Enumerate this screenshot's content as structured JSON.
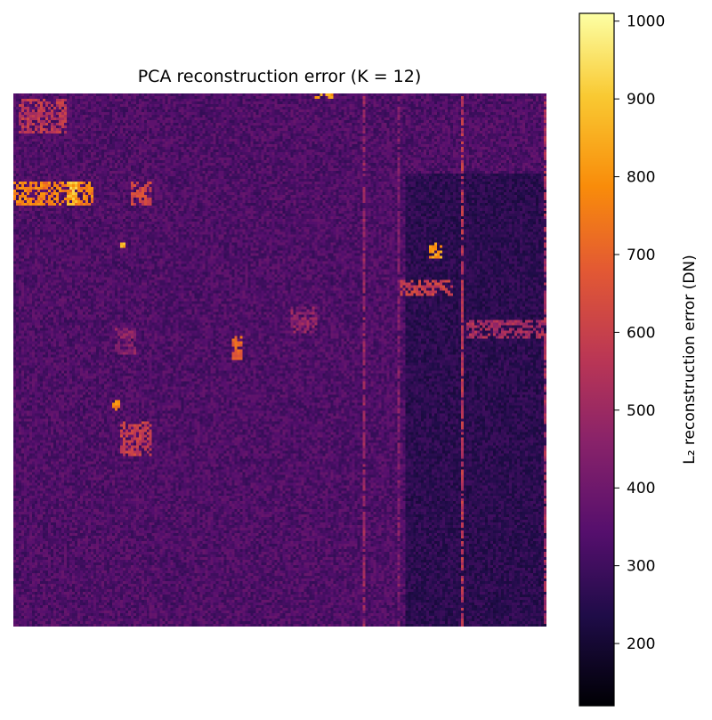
{
  "chart_data": {
    "type": "heatmap",
    "title": "PCA reconstruction error (K = 12)",
    "colormap": "inferno",
    "colorbar": {
      "label": "L₂ reconstruction error (DN)",
      "range": [
        120,
        1010
      ],
      "ticks": [
        200,
        300,
        400,
        500,
        600,
        700,
        800,
        900,
        1000
      ],
      "tick_labels": [
        "200",
        "300",
        "400",
        "500",
        "600",
        "700",
        "800",
        "900",
        "1000"
      ]
    },
    "axes_visible": false,
    "image": {
      "rows": 200,
      "cols": 200,
      "background_level": 330,
      "noise_amplitude": 55,
      "vertical_stripes": [
        {
          "col": 131,
          "level": 480
        },
        {
          "col": 144,
          "level": 430
        },
        {
          "col": 168,
          "level": 560
        },
        {
          "col": 199,
          "level": 520
        }
      ],
      "dark_regions": [
        {
          "col": [
            147,
            200
          ],
          "row": [
            30,
            200
          ],
          "level": 260
        }
      ],
      "bright_features": [
        {
          "col": [
            2,
            20
          ],
          "row": [
            2,
            15
          ],
          "level": 560
        },
        {
          "col": [
            0,
            30
          ],
          "row": [
            33,
            42
          ],
          "level": 760
        },
        {
          "col": [
            20,
            24
          ],
          "row": [
            33,
            42
          ],
          "level": 880
        },
        {
          "col": [
            44,
            52
          ],
          "row": [
            33,
            42
          ],
          "level": 620
        },
        {
          "col": [
            113,
            120
          ],
          "row": [
            0,
            2
          ],
          "level": 840
        },
        {
          "col": [
            156,
            161
          ],
          "row": [
            56,
            62
          ],
          "level": 820
        },
        {
          "col": [
            38,
            42
          ],
          "row": [
            56,
            58
          ],
          "level": 860
        },
        {
          "col": [
            82,
            86
          ],
          "row": [
            91,
            100
          ],
          "level": 700
        },
        {
          "col": [
            37,
            40
          ],
          "row": [
            115,
            119
          ],
          "level": 780
        },
        {
          "col": [
            40,
            52
          ],
          "row": [
            123,
            136
          ],
          "level": 590
        },
        {
          "col": [
            145,
            165
          ],
          "row": [
            70,
            76
          ],
          "level": 600
        },
        {
          "col": [
            104,
            114
          ],
          "row": [
            80,
            90
          ],
          "level": 470
        },
        {
          "col": [
            38,
            46
          ],
          "row": [
            88,
            98
          ],
          "level": 450
        },
        {
          "col": [
            170,
            199
          ],
          "row": [
            85,
            92
          ],
          "level": 520
        }
      ]
    }
  }
}
